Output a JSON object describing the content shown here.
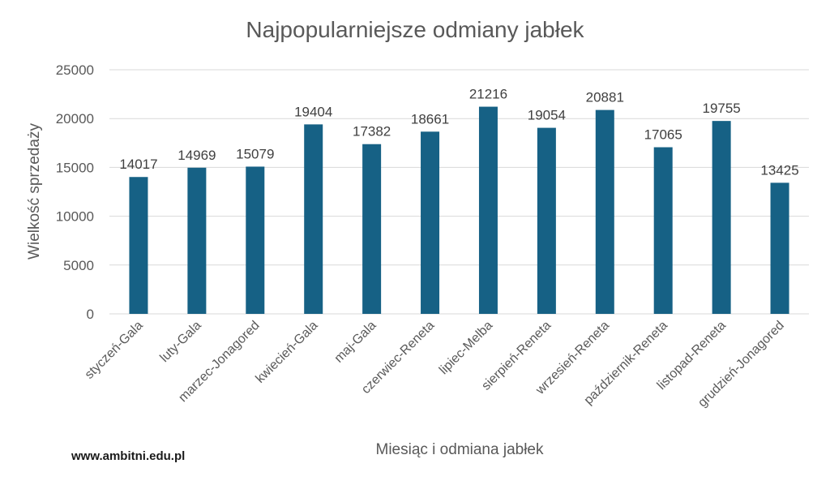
{
  "chart_data": {
    "type": "bar",
    "title": "Najpopularniejsze odmiany jabłek",
    "xlabel": "Miesiąc i odmiana jabłek",
    "ylabel": "Wielkość sprzedaży",
    "ylim": [
      0,
      25000
    ],
    "yticks": [
      0,
      5000,
      10000,
      15000,
      20000,
      25000
    ],
    "grid": true,
    "bar_color": "#166185",
    "categories": [
      "styczeń-Gala",
      "luty-Gala",
      "marzec-Jonagored",
      "kwiecień-Gala",
      "maj-Gala",
      "czerwiec-Reneta",
      "lipiec-Melba",
      "sierpień-Reneta",
      "wrzesień-Reneta",
      "październik-Reneta",
      "listopad-Reneta",
      "grudzień-Jonagored"
    ],
    "values": [
      14017,
      14969,
      15079,
      19404,
      17382,
      18661,
      21216,
      19054,
      20881,
      17065,
      19755,
      13425
    ]
  },
  "footer": {
    "text": "www.ambitni.edu.pl"
  }
}
